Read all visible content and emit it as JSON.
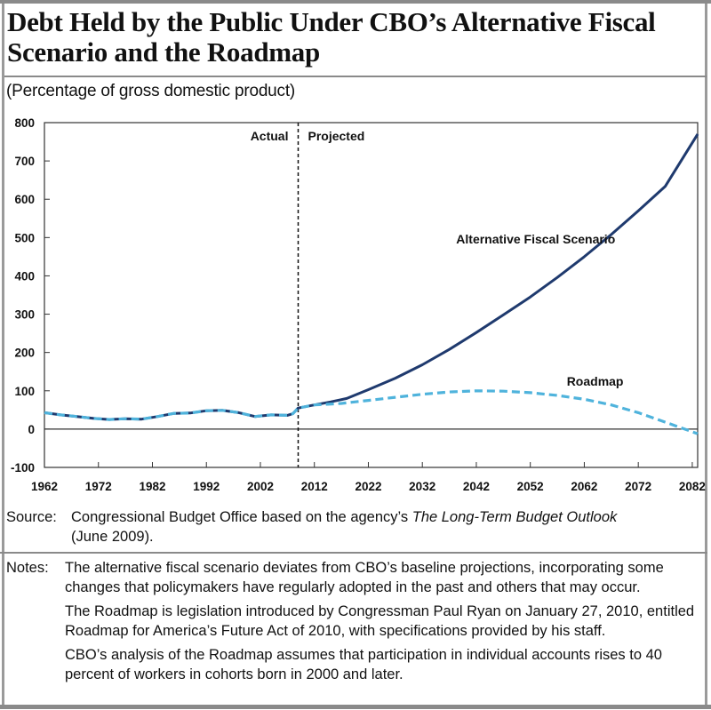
{
  "title": "Debt Held by the Public Under CBO’s Alternative Fiscal Scenario and the Roadmap",
  "subtitle": "(Percentage of gross domestic product)",
  "annotations": {
    "actual": "Actual",
    "projected": "Projected"
  },
  "source": {
    "label": "Source:",
    "text_before": "Congressional Budget Office based on the agency’s ",
    "text_italic": "The Long-Term Budget Outlook",
    "text_after": "(June 2009)."
  },
  "notes": {
    "label": "Notes:",
    "paragraphs": [
      "The alternative fiscal scenario deviates from CBO’s baseline projections, incorporating some changes that policymakers have regularly adopted in the past and others that may occur.",
      "The Roadmap is legislation introduced by Congressman Paul Ryan on January 27, 2010, entitled Roadmap for America’s Future Act of 2010, with specifications provided by his staff.",
      "CBO’s analysis of the Roadmap assumes that participation in individual accounts rises to 40 percent of workers in cohorts born in 2000 and later."
    ]
  },
  "colors": {
    "alternative": "#1f3a6e",
    "roadmap": "#4fb3dc"
  },
  "chart_data": {
    "type": "line",
    "title": "Debt Held by the Public Under CBO’s Alternative Fiscal Scenario and the Roadmap",
    "ylabel": "(Percentage of gross domestic product)",
    "xlim": [
      1962,
      2083
    ],
    "ylim": [
      -100,
      800
    ],
    "x_ticks": [
      1962,
      1972,
      1982,
      1992,
      2002,
      2012,
      2022,
      2032,
      2042,
      2052,
      2062,
      2072,
      2082
    ],
    "y_ticks": [
      -100,
      0,
      100,
      200,
      300,
      400,
      500,
      600,
      700,
      800
    ],
    "divider_x": 2009,
    "grid": false,
    "series": [
      {
        "name": "Alternative Fiscal Scenario",
        "style": "solid",
        "x": [
          1962,
          1965,
          1968,
          1971,
          1974,
          1977,
          1980,
          1983,
          1986,
          1989,
          1992,
          1995,
          1998,
          2001,
          2004,
          2007,
          2008,
          2009,
          2012,
          2015,
          2018,
          2022,
          2027,
          2032,
          2037,
          2042,
          2047,
          2052,
          2057,
          2062,
          2067,
          2072,
          2077,
          2083
        ],
        "y": [
          43,
          37,
          33,
          28,
          25,
          27,
          26,
          33,
          41,
          42,
          48,
          49,
          43,
          33,
          37,
          36,
          40,
          55,
          63,
          71,
          80,
          103,
          133,
          168,
          208,
          252,
          298,
          345,
          396,
          450,
          508,
          570,
          634,
          770
        ]
      },
      {
        "name": "Roadmap",
        "style": "dashed",
        "x": [
          1962,
          1965,
          1968,
          1971,
          1974,
          1977,
          1980,
          1983,
          1986,
          1989,
          1992,
          1995,
          1998,
          2001,
          2004,
          2007,
          2008,
          2009,
          2012,
          2017,
          2022,
          2027,
          2032,
          2037,
          2042,
          2047,
          2052,
          2057,
          2062,
          2067,
          2072,
          2077,
          2083
        ],
        "y": [
          43,
          37,
          33,
          28,
          25,
          27,
          26,
          33,
          41,
          42,
          48,
          49,
          43,
          33,
          37,
          36,
          40,
          55,
          63,
          67,
          75,
          83,
          91,
          97,
          100,
          99,
          95,
          88,
          78,
          63,
          43,
          18,
          -12
        ]
      }
    ],
    "series_labels": [
      "Alternative Fiscal Scenario",
      "Roadmap"
    ]
  }
}
